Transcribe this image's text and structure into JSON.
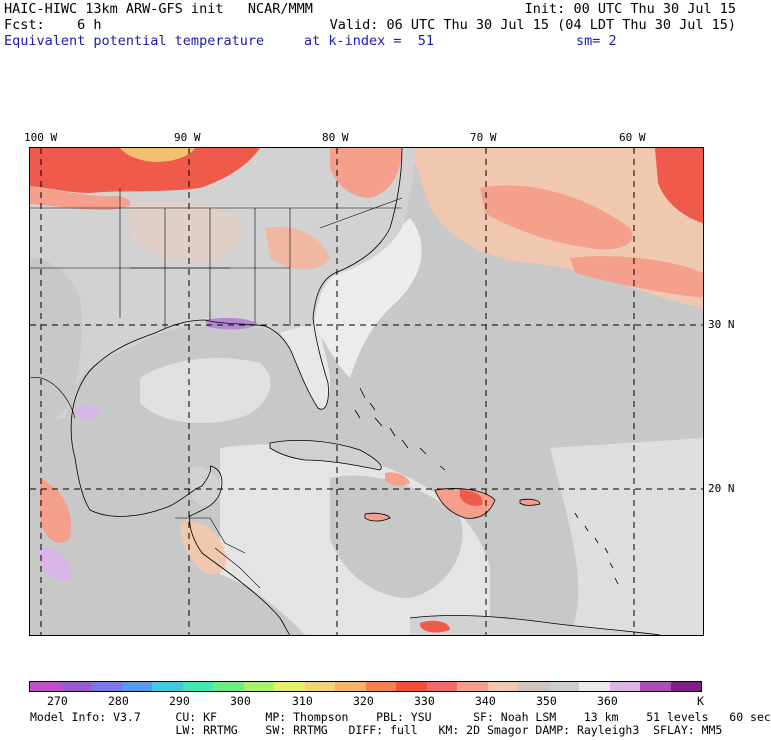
{
  "header": {
    "line1_left": "HAIC-HIWC 13km ARW-GFS init   NCAR/MMM",
    "line1_right": "Init: 00 UTC Thu 30 Jul 15",
    "line2_left": "Fcst:    6 h",
    "line2_right": "Valid: 06 UTC Thu 30 Jul 15 (04 LDT Thu 30 Jul 15)",
    "field": "Equivalent potential temperature",
    "level": "at k-index =  51",
    "smooth": "sm= 2"
  },
  "map": {
    "lon_labels": [
      "100 W",
      "90 W",
      "80 W",
      "70 W",
      "60 W"
    ],
    "lat_labels": [
      "30 N",
      "20 N"
    ],
    "colors": {
      "ocean_gray": "#c8c8c8",
      "land_gray": "#d2d2d2",
      "light": "#ececec",
      "tan": "#f0c8b0",
      "salmon": "#f4a08c",
      "red": "#f05a4a",
      "orange": "#f4c070",
      "lavender": "#d8b4e8"
    }
  },
  "colorbar": {
    "colors": [
      "#c050c8",
      "#9a5ad2",
      "#7878e6",
      "#5a9aee",
      "#46c8dc",
      "#46e6b4",
      "#6eec82",
      "#aaf06e",
      "#e6f06e",
      "#f4d278",
      "#f4b464",
      "#f48250",
      "#f0503c",
      "#f06c6c",
      "#f4a08c",
      "#f0c8b0",
      "#d2c3be",
      "#cdcdcd",
      "#ebebeb",
      "#dcb4e6",
      "#aa50b4",
      "#7d1e82"
    ],
    "tick_labels": [
      "270",
      "280",
      "290",
      "300",
      "310",
      "320",
      "330",
      "340",
      "350",
      "360"
    ],
    "unit": "K"
  },
  "footer": {
    "line1": "Model Info: V3.7     CU: KF       MP: Thompson    PBL: YSU      SF: Noah LSM    13 km    51 levels   60 sec",
    "line2": "                     LW: RRTMG    SW: RRTMG   DIFF: full   KM: 2D Smagor DAMP: Rayleigh3  SFLAY: MM5"
  }
}
